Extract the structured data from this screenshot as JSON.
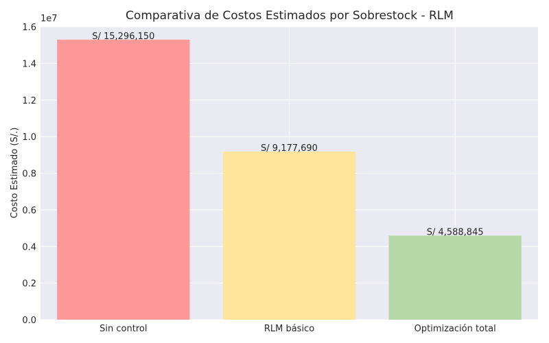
{
  "chart_data": {
    "type": "bar",
    "title": "Comparativa de Costos Estimados por Sobrestock - RLM",
    "ylabel": "Costo Estimado (S/.)",
    "xlabel": "",
    "y_offset_label": "1e7",
    "categories": [
      "Sin control",
      "RLM básico",
      "Optimización total"
    ],
    "values": [
      15296150,
      9177690,
      4588845
    ],
    "data_labels": [
      "S/ 15,296,150",
      "S/ 9,177,690",
      "S/ 4,588,845"
    ],
    "colors": [
      "#ff9999",
      "#ffe599",
      "#b6d7a8"
    ],
    "ylim": [
      0,
      16000000
    ],
    "yticks": [
      0,
      2000000,
      4000000,
      6000000,
      8000000,
      10000000,
      12000000,
      14000000,
      16000000
    ],
    "ytick_labels": [
      "0.0",
      "0.2",
      "0.4",
      "0.6",
      "0.8",
      "1.0",
      "1.2",
      "1.4",
      "1.6"
    ],
    "grid": true,
    "background": "#eaeaf2"
  }
}
